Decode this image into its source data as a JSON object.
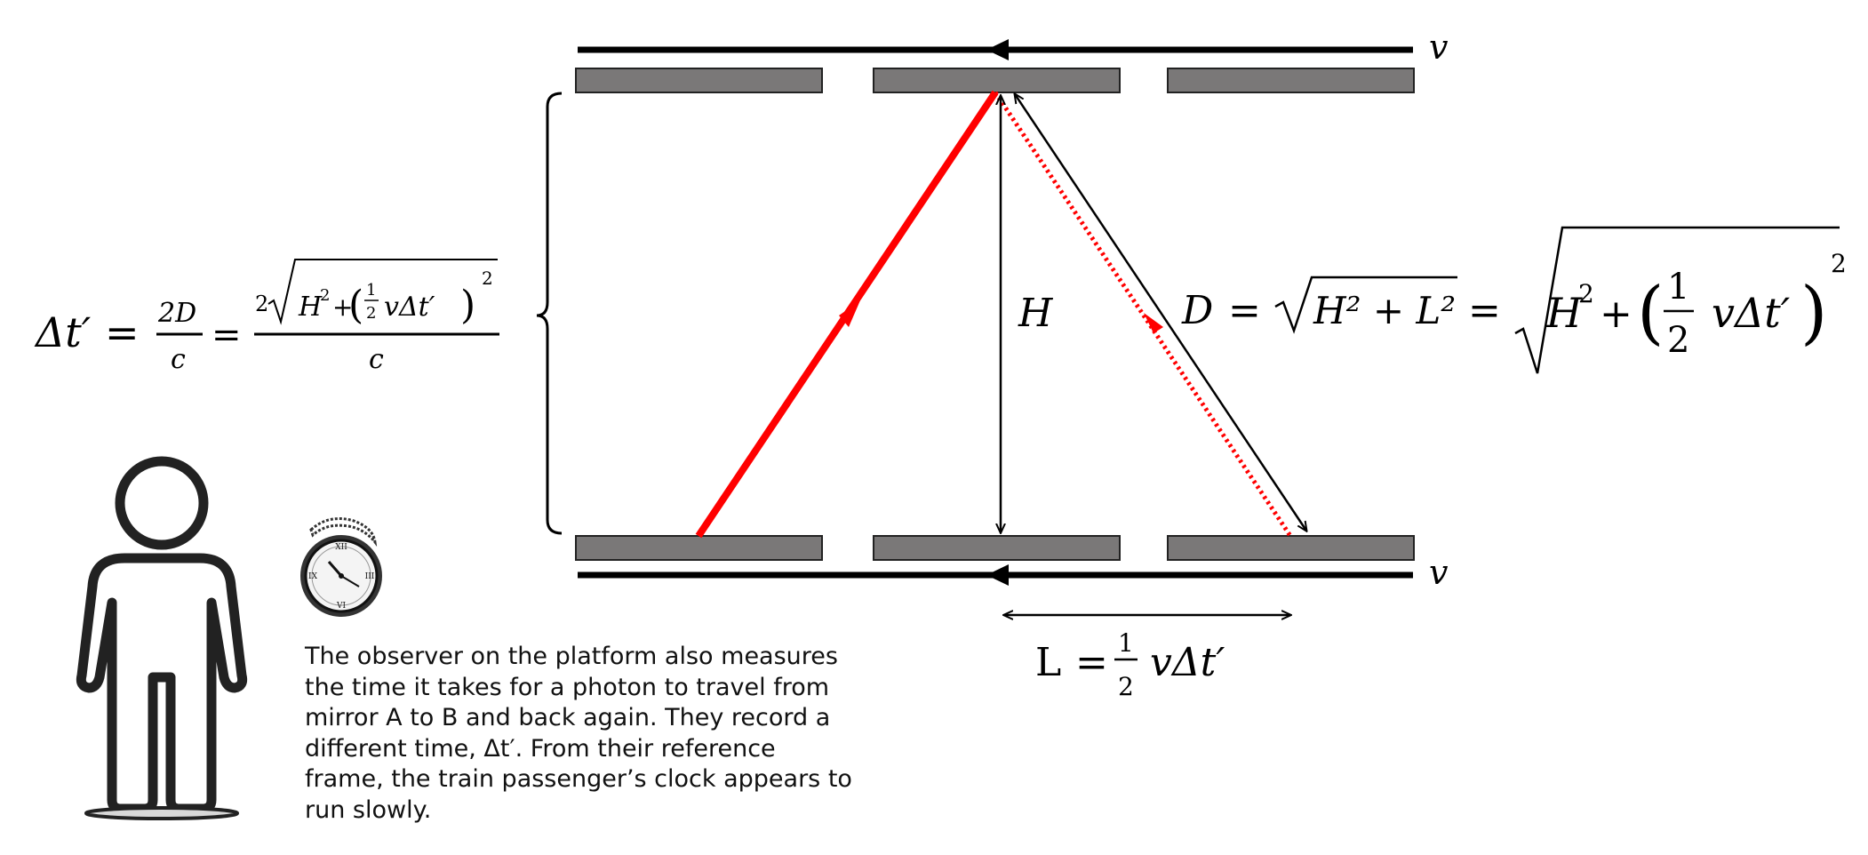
{
  "labels": {
    "v_top": "v",
    "v_bottom": "v",
    "height": "H"
  },
  "formula_left": {
    "dt": "Δt′",
    "eq1": "=",
    "num1": "2D",
    "den1": "c",
    "eq2": "=",
    "coef": "2",
    "H2": "H",
    "exp2": "2",
    "plus": "+",
    "half_num": "1",
    "half_den": "2",
    "vdt": "vΔt′",
    "outer_exp": "2",
    "den2": "c"
  },
  "formula_right": {
    "D": "D",
    "eq1": "=",
    "inner": "H² + L²",
    "eq2": "=",
    "H2": "H",
    "exp2": "2",
    "plus": "+",
    "half_num": "1",
    "half_den": "2",
    "vdt": "vΔt′",
    "outer_exp": "2"
  },
  "formula_L": {
    "L": "L",
    "eq": "=",
    "half_num": "1",
    "half_den": "2",
    "vdt": "vΔt′"
  },
  "description": [
    "The observer on the platform also measures",
    "the time it takes for a photon to travel from",
    "mirror A to B and back again. They record a",
    "different time, Δt′. From their reference",
    "frame, the train passenger’s clock appears to",
    "run slowly."
  ],
  "colors": {
    "mirror": "#7a7878",
    "photon": "#ff0000",
    "line": "#000000"
  },
  "icons": [
    "person-icon",
    "pocket-watch-icon"
  ]
}
